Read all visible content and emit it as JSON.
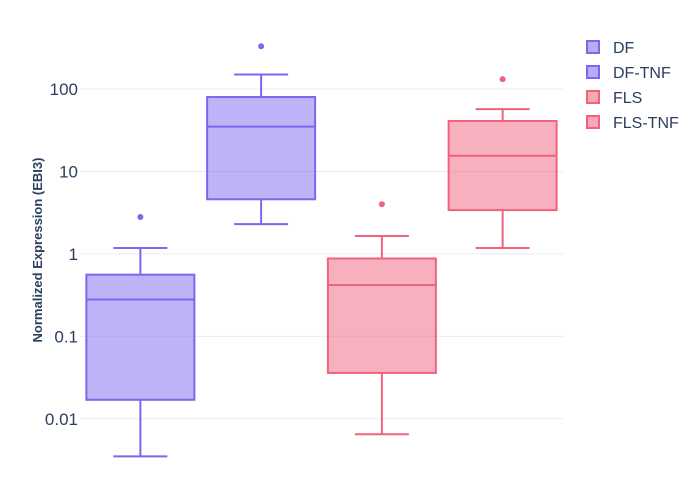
{
  "chart_data": {
    "type": "box",
    "ylabel": "Normalized Expression (EBI3)",
    "yscale": "log",
    "ylim": [
      0.0022,
      550
    ],
    "yticks": [
      {
        "value": 0.01,
        "label": "0.01"
      },
      {
        "value": 0.1,
        "label": "0.1"
      },
      {
        "value": 1,
        "label": "1"
      },
      {
        "value": 10,
        "label": "10"
      },
      {
        "value": 100,
        "label": "100"
      }
    ],
    "grid": true,
    "legend_position": "top-right",
    "series": [
      {
        "name": "DF",
        "color": "#7b68ee",
        "whisker_low": 0.0035,
        "q1": 0.017,
        "median": 0.28,
        "q3": 0.56,
        "whisker_high": 1.18,
        "outliers": [
          2.8
        ]
      },
      {
        "name": "DF-TNF",
        "color": "#7b68ee",
        "whisker_low": 2.3,
        "q1": 4.6,
        "median": 35,
        "q3": 80,
        "whisker_high": 150,
        "outliers": [
          330
        ]
      },
      {
        "name": "FLS",
        "color": "#f0627e",
        "whisker_low": 0.0065,
        "q1": 0.036,
        "median": 0.42,
        "q3": 0.88,
        "whisker_high": 1.65,
        "outliers": [
          4.0
        ]
      },
      {
        "name": "FLS-TNF",
        "color": "#f0627e",
        "whisker_low": 1.18,
        "q1": 3.4,
        "median": 15.5,
        "q3": 41,
        "whisker_high": 57,
        "outliers": [
          132
        ]
      }
    ]
  }
}
